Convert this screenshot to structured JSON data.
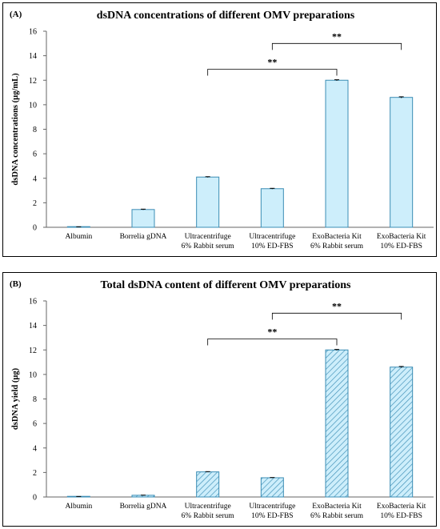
{
  "chart_data": [
    {
      "type": "bar",
      "panel_label": "(A)",
      "title": "dsDNA concentrations of different OMV preparations",
      "xlabel": "",
      "ylabel": "dsDNA concentrations (µg/mL)",
      "ylim": [
        0,
        16
      ],
      "yticks": [
        0,
        2,
        4,
        6,
        8,
        10,
        12,
        14,
        16
      ],
      "categories": [
        [
          "Albumin"
        ],
        [
          "Borrelia gDNA"
        ],
        [
          "Ultracentrifuge",
          "6% Rabbit serum"
        ],
        [
          "Ultracentrifuge",
          "10% ED-FBS"
        ],
        [
          "ExoBacteria Kit",
          "6% Rabbit serum"
        ],
        [
          "ExoBacteria Kit",
          "10% ED-FBS"
        ]
      ],
      "values": [
        0.03,
        1.45,
        4.1,
        3.15,
        12.0,
        10.6
      ],
      "errors": [
        0.01,
        0.03,
        0.03,
        0.03,
        0.04,
        0.05
      ],
      "bar_fill": "#cdeefb",
      "bar_stroke": "#3b8db5",
      "hatched": false,
      "significance": [
        {
          "from": 2,
          "to": 4,
          "y": 12.9,
          "label": "**"
        },
        {
          "from": 3,
          "to": 5,
          "y": 15.0,
          "label": "**"
        }
      ]
    },
    {
      "type": "bar",
      "panel_label": "(B)",
      "title": "Total dsDNA content of different OMV preparations",
      "xlabel": "",
      "ylabel": "dsDNA yield (µg)",
      "ylim": [
        0,
        16
      ],
      "yticks": [
        0,
        2,
        4,
        6,
        8,
        10,
        12,
        14,
        16
      ],
      "categories": [
        [
          "Albumin"
        ],
        [
          "Borrelia gDNA"
        ],
        [
          "Ultracentrifuge",
          "6% Rabbit serum"
        ],
        [
          "Ultracentrifuge",
          "10% ED-FBS"
        ],
        [
          "ExoBacteria Kit",
          "6% Rabbit serum"
        ],
        [
          "ExoBacteria Kit",
          "10% ED-FBS"
        ]
      ],
      "values": [
        0.03,
        0.14,
        2.05,
        1.57,
        12.0,
        10.6
      ],
      "errors": [
        0.01,
        0.01,
        0.02,
        0.02,
        0.04,
        0.05
      ],
      "bar_fill": "#cdeefb",
      "bar_stroke": "#3b8db5",
      "hatched": true,
      "significance": [
        {
          "from": 2,
          "to": 4,
          "y": 12.9,
          "label": "**"
        },
        {
          "from": 3,
          "to": 5,
          "y": 15.0,
          "label": "**"
        }
      ]
    }
  ]
}
